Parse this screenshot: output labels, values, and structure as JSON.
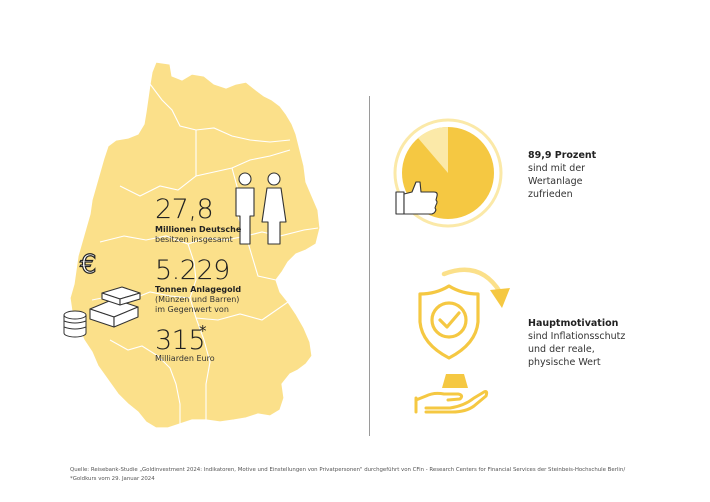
{
  "colors": {
    "map_fill": "#fbe08a",
    "map_border": "#ffffff",
    "icon_gold": "#f5c842",
    "icon_light": "#fbe9a8",
    "text_dark": "#222222"
  },
  "stats": {
    "people": {
      "value": "27,8",
      "label_bold": "Millionen Deutsche",
      "label_line": "besitzen insgesamt"
    },
    "gold": {
      "value": "5.229",
      "label_bold": "Tonnen Anlagegold",
      "label_line1": "(Münzen und Barren)",
      "label_line2": "im Gegenwert von"
    },
    "euro": {
      "value": "315",
      "asterisk": "*",
      "label_line": "Milliarden Euro"
    }
  },
  "satisfaction": {
    "title": "89,9 Prozent",
    "line1": "sind mit der",
    "line2": "Wertanlage",
    "line3": "zufrieden",
    "percent": 89.9
  },
  "motivation": {
    "title": "Hauptmotivation",
    "line1": "sind Inflationsschutz",
    "line2": "und der reale,",
    "line3": "physische Wert"
  },
  "footnote": {
    "line1": "Quelle: Reisebank-Studie „Goldinvestment 2024: Indikatoren, Motive und Einstellungen von Privatpersonen\" durchgeführt von CFin - Research Centers for Financial Services der Steinbeis-Hochschule Berlin/",
    "line2": "*Goldkurs vom 29. Januar 2024"
  },
  "icons": {
    "euro_symbol": "€",
    "people": "person-pair-icon",
    "gold_bars": "gold-bars-icon",
    "coins": "coin-stack-icon",
    "thumbs_up": "thumbs-up-icon",
    "pie": "satisfaction-pie-icon",
    "shield": "shield-check-icon",
    "hand": "hand-with-bar-icon",
    "arrow": "curved-arrow-icon"
  }
}
